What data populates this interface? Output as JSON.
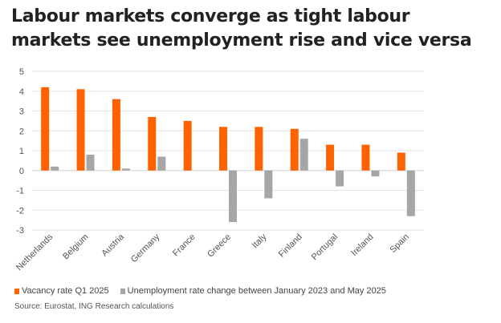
{
  "chart_data": {
    "type": "bar",
    "title": "Labour markets converge as tight labour markets see unemployment rise and vice versa",
    "categories": [
      "Netherlands",
      "Belgium",
      "Austria",
      "Germany",
      "France",
      "Greece",
      "Italy",
      "Finland",
      "Portugal",
      "Ireland",
      "Spain"
    ],
    "series": [
      {
        "name": "Vacancy rate Q1 2025",
        "color": "#ff6200",
        "values": [
          4.2,
          4.1,
          3.6,
          2.7,
          2.5,
          2.2,
          2.2,
          2.1,
          1.3,
          1.3,
          0.9
        ]
      },
      {
        "name": "Unemployment rate change between January 2023 and May 2025",
        "color": "#a6a6a6",
        "values": [
          0.2,
          0.8,
          0.1,
          0.7,
          0.0,
          -2.6,
          -1.4,
          1.6,
          -0.8,
          -0.3,
          -2.3
        ]
      }
    ],
    "ylim": [
      -3,
      5
    ],
    "yticks": [
      "5",
      "4",
      "3",
      "2",
      "1",
      "0",
      "-1",
      "-2",
      "-3"
    ],
    "grid": true,
    "legend": "bottom",
    "source": "Source: Eurostat, ING Research calculations"
  }
}
